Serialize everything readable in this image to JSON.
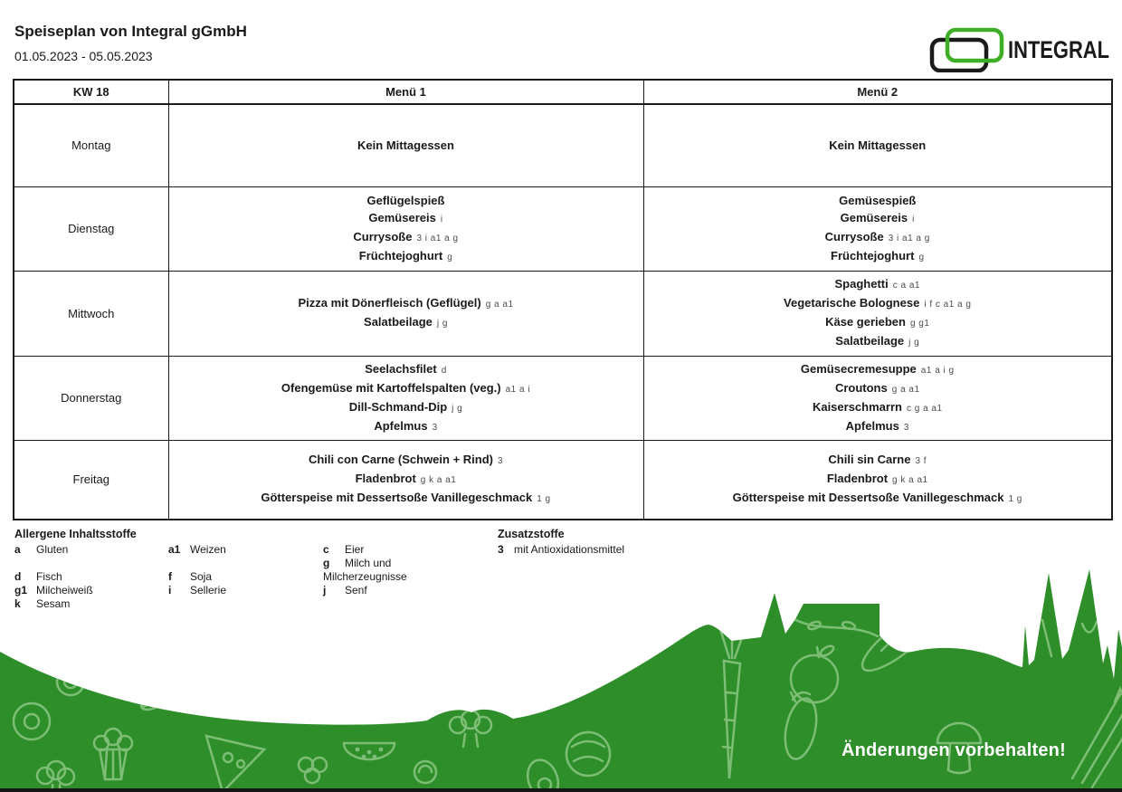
{
  "header": {
    "title": "Speiseplan von Integral gGmbH",
    "date_range": "01.05.2023 - 05.05.2023",
    "logo_text": "INTEGRAL"
  },
  "table": {
    "week_label": "KW 18",
    "menu1_label": "Menü 1",
    "menu2_label": "Menü 2",
    "rows": [
      {
        "day": "Montag",
        "menu1": [
          {
            "name": "Kein Mittagessen",
            "codes": ""
          }
        ],
        "menu2": [
          {
            "name": "Kein Mittagessen",
            "codes": ""
          }
        ]
      },
      {
        "day": "Dienstag",
        "menu1": [
          {
            "name": "Geflügelspieß",
            "codes": ""
          },
          {
            "name": "Gemüsereis",
            "codes": "i"
          },
          {
            "name": "Currysoße",
            "codes": "3 i a1 a g"
          },
          {
            "name": "Früchtejoghurt",
            "codes": "g"
          }
        ],
        "menu2": [
          {
            "name": "Gemüsespieß",
            "codes": ""
          },
          {
            "name": "Gemüsereis",
            "codes": "i"
          },
          {
            "name": "Currysoße",
            "codes": "3 i a1 a g"
          },
          {
            "name": "Früchtejoghurt",
            "codes": "g"
          }
        ]
      },
      {
        "day": "Mittwoch",
        "menu1": [
          {
            "name": "Pizza mit Dönerfleisch (Geflügel)",
            "codes": "g a a1"
          },
          {
            "name": "Salatbeilage",
            "codes": "j g"
          }
        ],
        "menu2": [
          {
            "name": "Spaghetti",
            "codes": "c a a1"
          },
          {
            "name": "Vegetarische Bolognese",
            "codes": "i f c a1 a g"
          },
          {
            "name": "Käse gerieben",
            "codes": "g g1"
          },
          {
            "name": "Salatbeilage",
            "codes": "j g"
          }
        ]
      },
      {
        "day": "Donnerstag",
        "menu1": [
          {
            "name": "Seelachsfilet",
            "codes": "d"
          },
          {
            "name": "Ofengemüse mit Kartoffelspalten (veg.)",
            "codes": "a1 a i"
          },
          {
            "name": "Dill-Schmand-Dip",
            "codes": "j g"
          },
          {
            "name": "Apfelmus",
            "codes": "3"
          }
        ],
        "menu2": [
          {
            "name": "Gemüsecremesuppe",
            "codes": "a1 a i g"
          },
          {
            "name": "Croutons",
            "codes": "g a a1"
          },
          {
            "name": "Kaiserschmarrn",
            "codes": "c g a a1"
          },
          {
            "name": "Apfelmus",
            "codes": "3"
          }
        ]
      },
      {
        "day": "Freitag",
        "menu1": [
          {
            "name": "Chili con Carne (Schwein + Rind)",
            "codes": "3"
          },
          {
            "name": "Fladenbrot",
            "codes": "g k a a1"
          },
          {
            "name": "Götterspeise mit Dessertsoße Vanillegeschmack",
            "codes": "1 g"
          }
        ],
        "menu2": [
          {
            "name": "Chili sin Carne",
            "codes": "3 f"
          },
          {
            "name": "Fladenbrot",
            "codes": "g k a a1"
          },
          {
            "name": "Götterspeise mit Dessertsoße Vanillegeschmack",
            "codes": "1 g"
          }
        ]
      }
    ]
  },
  "legend": {
    "allergens_title": "Allergene Inhaltsstoffe",
    "allergen_columns": [
      [
        {
          "code": "a",
          "label": "Gluten"
        },
        {
          "code": "",
          "label": ""
        },
        {
          "code": "d",
          "label": "Fisch"
        },
        {
          "code": "g1",
          "label": "Milcheiweiß"
        },
        {
          "code": "k",
          "label": "Sesam"
        }
      ],
      [
        {
          "code": "a1",
          "label": "Weizen"
        },
        {
          "code": "",
          "label": ""
        },
        {
          "code": "f",
          "label": "Soja"
        },
        {
          "code": "i",
          "label": "Sellerie"
        }
      ],
      [
        {
          "code": "c",
          "label": "Eier"
        },
        {
          "code": "g",
          "label": "Milch und"
        },
        {
          "code": "",
          "label": "Milcherzeugnisse"
        },
        {
          "code": "j",
          "label": "Senf"
        }
      ]
    ],
    "additives_title": "Zusatzstoffe",
    "additives": [
      {
        "code": "3",
        "label": "mit Antioxidationsmittel"
      }
    ]
  },
  "footer": {
    "notice": "Änderungen vorbehalten!"
  },
  "colors": {
    "footer_green": "#2e8f2a",
    "doodle_green": "#82c07a",
    "logo_green": "#3fae27",
    "text_black": "#1a1a1a",
    "code_gray": "#4d4d4d"
  }
}
